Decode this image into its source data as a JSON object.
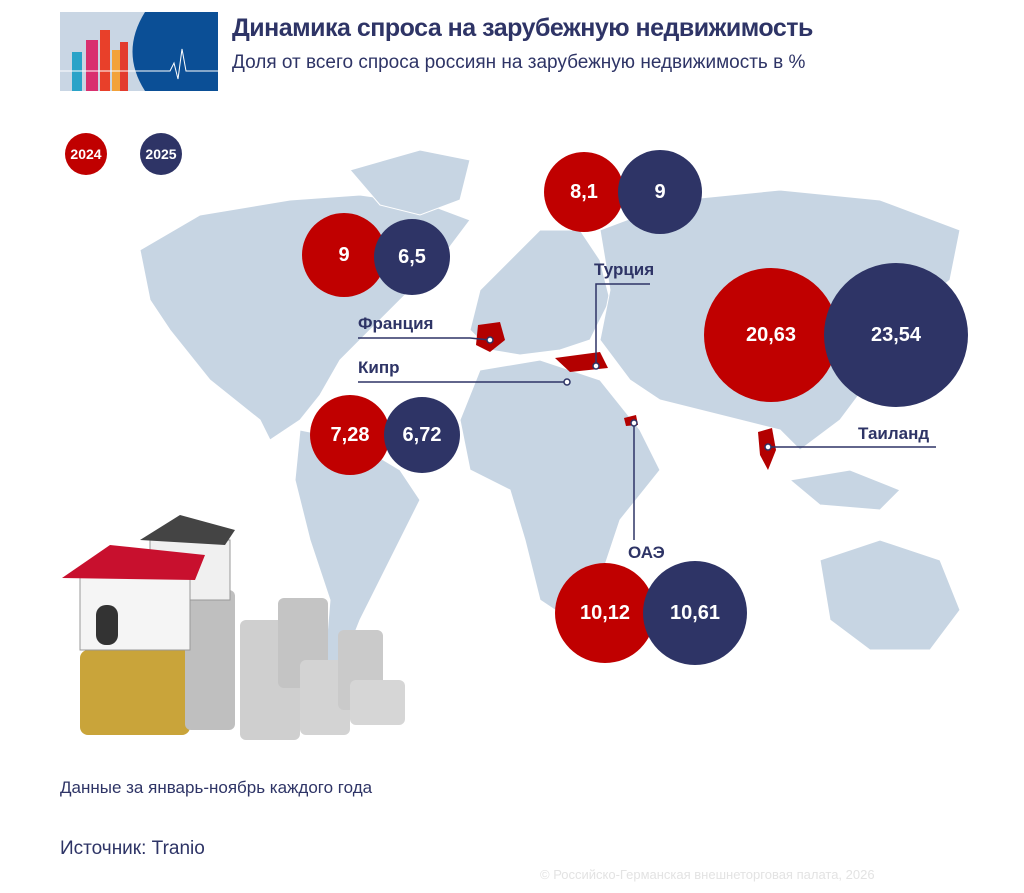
{
  "header": {
    "title": "Динамика спроса на зарубежную недвижимость",
    "subtitle": "Доля от всего спроса россиян на зарубежную недвижимость в %"
  },
  "legend": {
    "items": [
      "2024",
      "2025"
    ]
  },
  "colors": {
    "y2024": "#c00000",
    "y2025": "#2e3466",
    "map": "#c7d5e3"
  },
  "chart_data": {
    "type": "bubble",
    "series": [
      {
        "name": "2024"
      },
      {
        "name": "2025"
      }
    ],
    "pairs": [
      {
        "values": [
          "9",
          "6,5"
        ]
      },
      {
        "values": [
          "8,1",
          "9"
        ]
      },
      {
        "values": [
          "20,63",
          "23,54"
        ]
      },
      {
        "values": [
          "7,28",
          "6,72"
        ]
      },
      {
        "values": [
          "10,12",
          "10,61"
        ]
      }
    ],
    "callouts": [
      "Франция",
      "Кипр",
      "Турция",
      "Таиланд",
      "ОАЭ"
    ]
  },
  "footer": {
    "note": "Данные за январь-ноябрь каждого года",
    "source": "Источник: Tranio",
    "copyright": "© Российско-Германская внешнеторговая палата, 2026"
  }
}
